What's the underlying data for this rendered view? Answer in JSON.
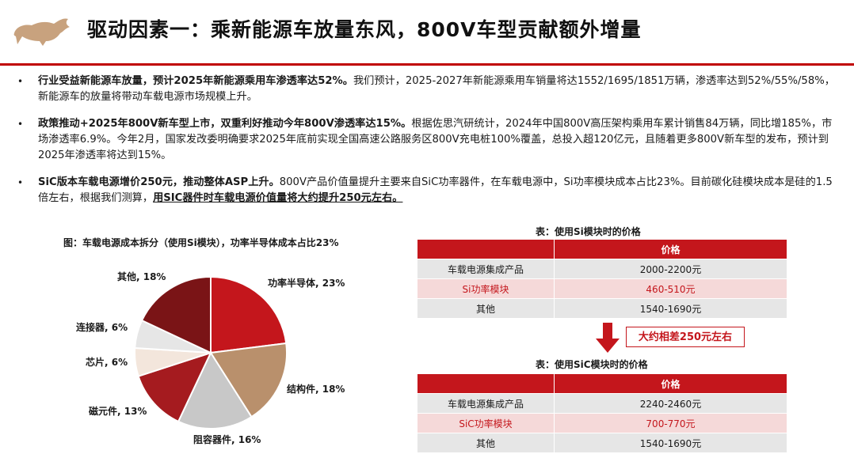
{
  "header": {
    "title": "驱动因素一：乘新能源车放量东风，800V车型贡献额外增量"
  },
  "bullets": [
    {
      "bold": "行业受益新能源车放量，预计2025年新能源乘用车渗透率达52%。",
      "text": "我们预计，2025-2027年新能源乘用车销量将达1552/1695/1851万辆，渗透率达到52%/55%/58%，新能源车的放量将带动车载电源市场规模上升。"
    },
    {
      "bold": "政策推动+2025年800V新车型上市，双重利好推动今年800V渗透率达15%。",
      "text": "根据佐思汽研统计，2024年中国800V高压架构乘用车累计销售84万辆，同比增185%，市场渗透率6.9%。今年2月，国家发改委明确要求2025年底前实现全国高速公路服务区800V充电桩100%覆盖，总投入超120亿元，且随着更多800V新车型的发布，预计到2025年渗透率将达到15%。"
    },
    {
      "bold": "SiC版本车载电源增价250元，推动整体ASP上升。",
      "text": "800V产品价值量提升主要来自SiC功率器件，在车载电源中，Si功率模块成本占比23%。目前碳化硅模块成本是硅的1.5倍左右，根据我们测算，",
      "underline": "用SIC器件时车载电源价值量将大约提升250元左右。"
    }
  ],
  "chart_data": {
    "type": "pie",
    "title": "图：车载电源成本拆分（使用Si模块），功率半导体成本占比23%",
    "slices": [
      {
        "label": "功率半导体, 23%",
        "value": 23,
        "color": "#c4161c"
      },
      {
        "label": "结构件, 18%",
        "value": 18,
        "color": "#b9906c"
      },
      {
        "label": "阻容器件, 16%",
        "value": 16,
        "color": "#c8c8c8"
      },
      {
        "label": "磁元件, 13%",
        "value": 13,
        "color": "#a51b1f"
      },
      {
        "label": "芯片, 6%",
        "value": 6,
        "color": "#f3e6dc"
      },
      {
        "label": "连接器, 6%",
        "value": 6,
        "color": "#e6e6e6"
      },
      {
        "label": "其他, 18%",
        "value": 18,
        "color": "#7a1416"
      }
    ]
  },
  "table1": {
    "title": "表：使用Si模块时的价格",
    "header": [
      "",
      "价格"
    ],
    "rows": [
      [
        "车载电源集成产品",
        "2000-2200元"
      ],
      [
        "Si功率模块",
        "460-510元"
      ],
      [
        "其他",
        "1540-1690元"
      ]
    ]
  },
  "diff_label": "大约相差250元左右",
  "table2": {
    "title": "表：使用SiC模块时的价格",
    "header": [
      "",
      "价格"
    ],
    "rows": [
      [
        "车载电源集成产品",
        "2240-2460元"
      ],
      [
        "SiC功率模块",
        "700-770元"
      ],
      [
        "其他",
        "1540-1690元"
      ]
    ]
  },
  "colors": {
    "accent": "#c4161c",
    "rule": "#c00000"
  }
}
